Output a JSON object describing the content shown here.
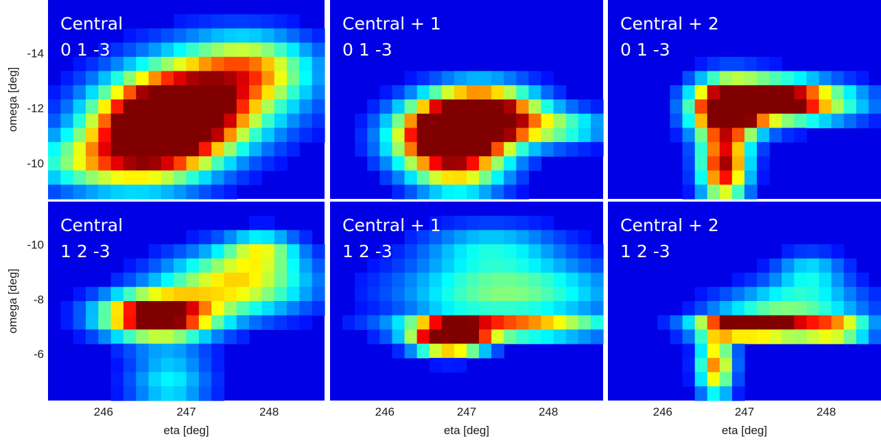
{
  "figure": {
    "x_axis_label": "eta [deg]",
    "y_axis_label": "omega [deg]"
  },
  "chart_data": [
    {
      "type": "heatmap",
      "panel": "top-left",
      "labels": [
        "Central",
        "0 1 -3"
      ],
      "xlabel": "",
      "ylabel": "omega [deg]",
      "x_ticks": [],
      "y_ticks": [
        "-14",
        "-12",
        "-10"
      ],
      "xlim": [
        245.33,
        248.67
      ],
      "ylim": [
        -15.93,
        -8.7
      ],
      "colormap": "jet",
      "hotspots": [
        {
          "x": 246.6,
          "y": -11.0,
          "value": 1.0,
          "sx": 0.55,
          "sy": 1.1
        },
        {
          "x": 246.9,
          "y": -11.8,
          "value": 0.7,
          "sx": 0.5,
          "sy": 0.9
        },
        {
          "x": 247.3,
          "y": -12.5,
          "value": 0.55,
          "sx": 0.7,
          "sy": 1.2
        },
        {
          "x": 247.8,
          "y": -13.5,
          "value": 0.45,
          "sx": 0.5,
          "sy": 0.8
        },
        {
          "x": 245.9,
          "y": -10.0,
          "value": 0.4,
          "sx": 0.6,
          "sy": 0.7
        }
      ]
    },
    {
      "type": "heatmap",
      "panel": "top-middle",
      "labels": [
        "Central + 1",
        "0 1 -3"
      ],
      "xlabel": "",
      "ylabel": "",
      "x_ticks": [],
      "y_ticks": [],
      "xlim": [
        245.33,
        248.67
      ],
      "ylim": [
        -15.93,
        -8.7
      ],
      "colormap": "jet",
      "hotspots": [
        {
          "x": 246.8,
          "y": -10.9,
          "value": 1.35,
          "sx": 0.45,
          "sy": 0.8
        },
        {
          "x": 247.2,
          "y": -11.8,
          "value": 1.1,
          "sx": 0.45,
          "sy": 0.7
        },
        {
          "x": 248.1,
          "y": -11.3,
          "value": 0.4,
          "sx": 0.45,
          "sy": 0.45
        },
        {
          "x": 246.9,
          "y": -9.5,
          "value": 0.35,
          "sx": 0.4,
          "sy": 0.6
        }
      ]
    },
    {
      "type": "heatmap",
      "panel": "top-right",
      "labels": [
        "Central + 2",
        "0 1 -3"
      ],
      "xlabel": "",
      "ylabel": "",
      "x_ticks": [],
      "y_ticks": [],
      "xlim": [
        245.33,
        248.67
      ],
      "ylim": [
        -15.93,
        -8.7
      ],
      "colormap": "jet",
      "hotspots": [
        {
          "x": 246.8,
          "y": -12.0,
          "value": 1.3,
          "sx": 0.3,
          "sy": 0.7
        },
        {
          "x": 247.4,
          "y": -12.3,
          "value": 1.05,
          "sx": 0.4,
          "sy": 0.5
        },
        {
          "x": 246.75,
          "y": -9.9,
          "value": 0.95,
          "sx": 0.2,
          "sy": 0.9
        },
        {
          "x": 248.0,
          "y": -12.2,
          "value": 0.35,
          "sx": 0.45,
          "sy": 0.5
        }
      ]
    },
    {
      "type": "heatmap",
      "panel": "bottom-left",
      "labels": [
        "Central",
        "1 2 -3"
      ],
      "xlabel": "eta [deg]",
      "ylabel": "omega [deg]",
      "x_ticks": [
        "246",
        "247",
        "248"
      ],
      "y_ticks": [
        "-10",
        "-8",
        "-6"
      ],
      "xlim": [
        245.33,
        248.67
      ],
      "ylim": [
        -11.57,
        -4.3
      ],
      "colormap": "jet",
      "hotspots": [
        {
          "x": 246.65,
          "y": -7.4,
          "value": 1.2,
          "sx": 0.45,
          "sy": 0.55
        },
        {
          "x": 247.6,
          "y": -8.6,
          "value": 0.62,
          "sx": 0.6,
          "sy": 0.8
        },
        {
          "x": 247.9,
          "y": -9.8,
          "value": 0.4,
          "sx": 0.3,
          "sy": 0.45
        },
        {
          "x": 246.8,
          "y": -5.0,
          "value": 0.3,
          "sx": 0.35,
          "sy": 0.9
        }
      ]
    },
    {
      "type": "heatmap",
      "panel": "bottom-middle",
      "labels": [
        "Central + 1",
        "1 2 -3"
      ],
      "xlabel": "eta [deg]",
      "ylabel": "",
      "x_ticks": [
        "246",
        "247",
        "248"
      ],
      "y_ticks": [],
      "xlim": [
        245.33,
        248.67
      ],
      "ylim": [
        -11.57,
        -4.3
      ],
      "colormap": "jet",
      "hotspots": [
        {
          "x": 246.8,
          "y": -6.6,
          "value": 1.3,
          "sx": 0.3,
          "sy": 0.4
        },
        {
          "x": 247.5,
          "y": -7.0,
          "value": 0.72,
          "sx": 0.85,
          "sy": 0.28
        },
        {
          "x": 247.5,
          "y": -8.3,
          "value": 0.45,
          "sx": 0.9,
          "sy": 0.75
        },
        {
          "x": 247.3,
          "y": -9.9,
          "value": 0.28,
          "sx": 0.6,
          "sy": 0.6
        }
      ]
    },
    {
      "type": "heatmap",
      "panel": "bottom-right",
      "labels": [
        "Central + 2",
        "1 2 -3"
      ],
      "xlabel": "eta [deg]",
      "ylabel": "",
      "x_ticks": [
        "246",
        "247",
        "248"
      ],
      "y_ticks": [],
      "xlim": [
        245.33,
        248.67
      ],
      "ylim": [
        -11.57,
        -4.3
      ],
      "colormap": "jet",
      "hotspots": [
        {
          "x": 247.1,
          "y": -7.0,
          "value": 1.25,
          "sx": 0.45,
          "sy": 0.28
        },
        {
          "x": 248.1,
          "y": -6.9,
          "value": 0.78,
          "sx": 0.3,
          "sy": 0.25
        },
        {
          "x": 246.65,
          "y": -5.6,
          "value": 0.72,
          "sx": 0.15,
          "sy": 0.8
        },
        {
          "x": 247.6,
          "y": -7.7,
          "value": 0.4,
          "sx": 0.6,
          "sy": 0.6
        },
        {
          "x": 247.8,
          "y": -9.0,
          "value": 0.28,
          "sx": 0.3,
          "sy": 0.5
        }
      ]
    }
  ]
}
